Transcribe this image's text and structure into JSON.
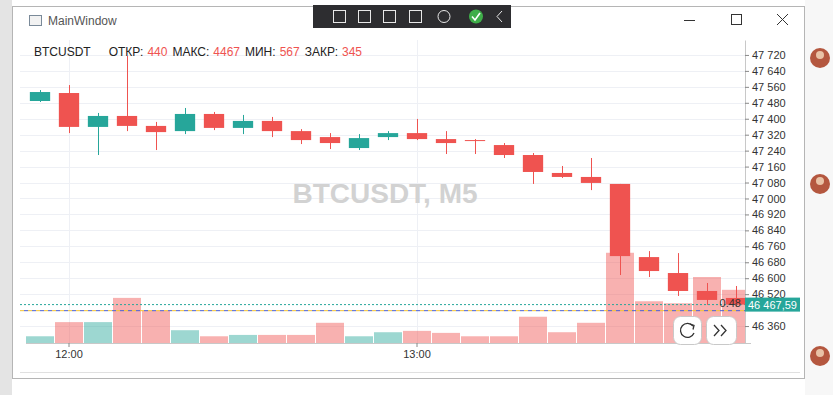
{
  "window": {
    "title": "MainWindow"
  },
  "chart_data": {
    "type": "candlestick",
    "watermark": "BTCUSDT, M5",
    "ohlc_legend": [
      {
        "label": "ОТКР:",
        "value": 440
      },
      {
        "label": "МАКС:",
        "value": 4467
      },
      {
        "label": "МИН:",
        "value": 567
      },
      {
        "label": "ЗАКР:",
        "value": 345
      }
    ],
    "categories": [
      null,
      "12:00",
      null,
      null,
      null,
      null,
      null,
      null,
      null,
      null,
      null,
      null,
      null,
      "13:00",
      null,
      null,
      null,
      null,
      null,
      null,
      null,
      null,
      null,
      null,
      null
    ],
    "ylim": [
      46275,
      47795
    ],
    "yticks": [
      {
        "value": 47720,
        "label": "47 720"
      },
      {
        "value": 47640,
        "label": "47 640"
      },
      {
        "value": 47560,
        "label": "47 560"
      },
      {
        "value": 47480,
        "label": "47 480"
      },
      {
        "value": 47400,
        "label": "47 400"
      },
      {
        "value": 47320,
        "label": "47 320"
      },
      {
        "value": 47240,
        "label": "47 240"
      },
      {
        "value": 47160,
        "label": "47 160"
      },
      {
        "value": 47080,
        "label": "47 080"
      },
      {
        "value": 47000,
        "label": "47 000"
      },
      {
        "value": 46920,
        "label": "46 920"
      },
      {
        "value": 46840,
        "label": "46 840"
      },
      {
        "value": 46760,
        "label": "46 760"
      },
      {
        "value": 46680,
        "label": "46 680"
      },
      {
        "value": 46600,
        "label": "46 600"
      },
      {
        "value": 46520,
        "label": "46 520"
      },
      {
        "value": 46360,
        "label": "46 360"
      }
    ],
    "y2lim": [
      0,
      4.5
    ],
    "y2ticks": [],
    "grid": true,
    "series": [
      {
        "name": "BTCUSDT",
        "type": "candlestick",
        "open": [
          47489,
          47529,
          47359,
          47414,
          47364,
          47338,
          47424,
          47354,
          47389,
          47338,
          47308,
          47253,
          47308,
          47328,
          47298,
          47293,
          47268,
          47218,
          47128,
          47108,
          47073,
          46706,
          46626,
          46536,
          46501
        ],
        "high": [
          47544,
          47569,
          47429,
          47715,
          47384,
          47454,
          47434,
          47419,
          47409,
          47348,
          47328,
          47323,
          47338,
          47399,
          47338,
          47298,
          47278,
          47228,
          47163,
          47203,
          47073,
          46736,
          46726,
          46576,
          46561
        ],
        "low": [
          47484,
          47328,
          47218,
          47338,
          47243,
          47323,
          47343,
          47323,
          47308,
          47273,
          47248,
          47243,
          47293,
          47293,
          47223,
          47223,
          47203,
          47073,
          47103,
          47042,
          46616,
          46606,
          46511,
          46466,
          46460
        ],
        "close": [
          47534,
          47359,
          47414,
          47364,
          47333,
          47424,
          47354,
          47389,
          47338,
          47293,
          47278,
          47303,
          47328,
          47298,
          47278,
          47288,
          47218,
          47133,
          47108,
          47078,
          46711,
          46636,
          46536,
          46491,
          46467.59
        ]
      },
      {
        "type": "bar",
        "axis": "y2",
        "values": [
          0.1,
          0.31,
          0.31,
          0.67,
          0.48,
          0.19,
          0.1,
          0.12,
          0.12,
          0.12,
          0.3,
          0.1,
          0.16,
          0.18,
          0.15,
          0.1,
          0.1,
          0.39,
          0.16,
          0.3,
          1.34,
          0.62,
          0.59,
          0.98,
          0.79
        ]
      }
    ],
    "price_line": {
      "value": 46467.59,
      "label": "46 467,59"
    },
    "volume_line": 0.48
  }
}
